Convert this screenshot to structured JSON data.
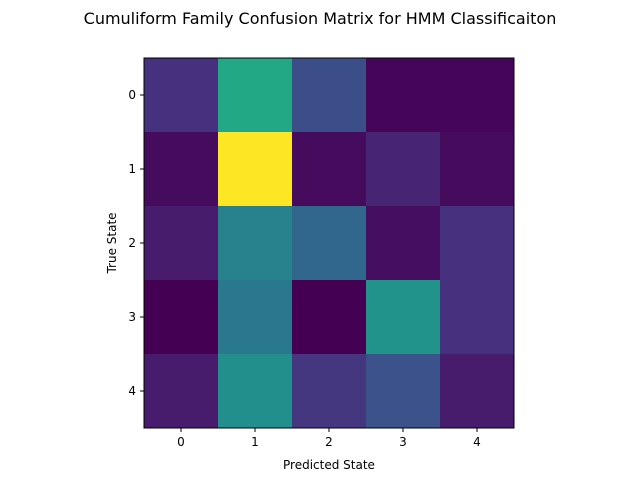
{
  "chart_data": {
    "type": "heatmap",
    "title": "Cumuliform Family Confusion Matrix for HMM Classificaiton",
    "xlabel": "Predicted State",
    "ylabel": "True State",
    "x_categories": [
      "0",
      "1",
      "2",
      "3",
      "4"
    ],
    "y_categories": [
      "0",
      "1",
      "2",
      "3",
      "4"
    ],
    "colormap": "viridis",
    "value_range": [
      0,
      1
    ],
    "values": [
      [
        0.18,
        0.75,
        0.3,
        0.02,
        0.02
      ],
      [
        0.04,
        1.0,
        0.04,
        0.13,
        0.04
      ],
      [
        0.1,
        0.55,
        0.42,
        0.05,
        0.18
      ],
      [
        0.0,
        0.5,
        0.0,
        0.64,
        0.18
      ],
      [
        0.1,
        0.62,
        0.2,
        0.32,
        0.1
      ]
    ],
    "grid": false
  }
}
